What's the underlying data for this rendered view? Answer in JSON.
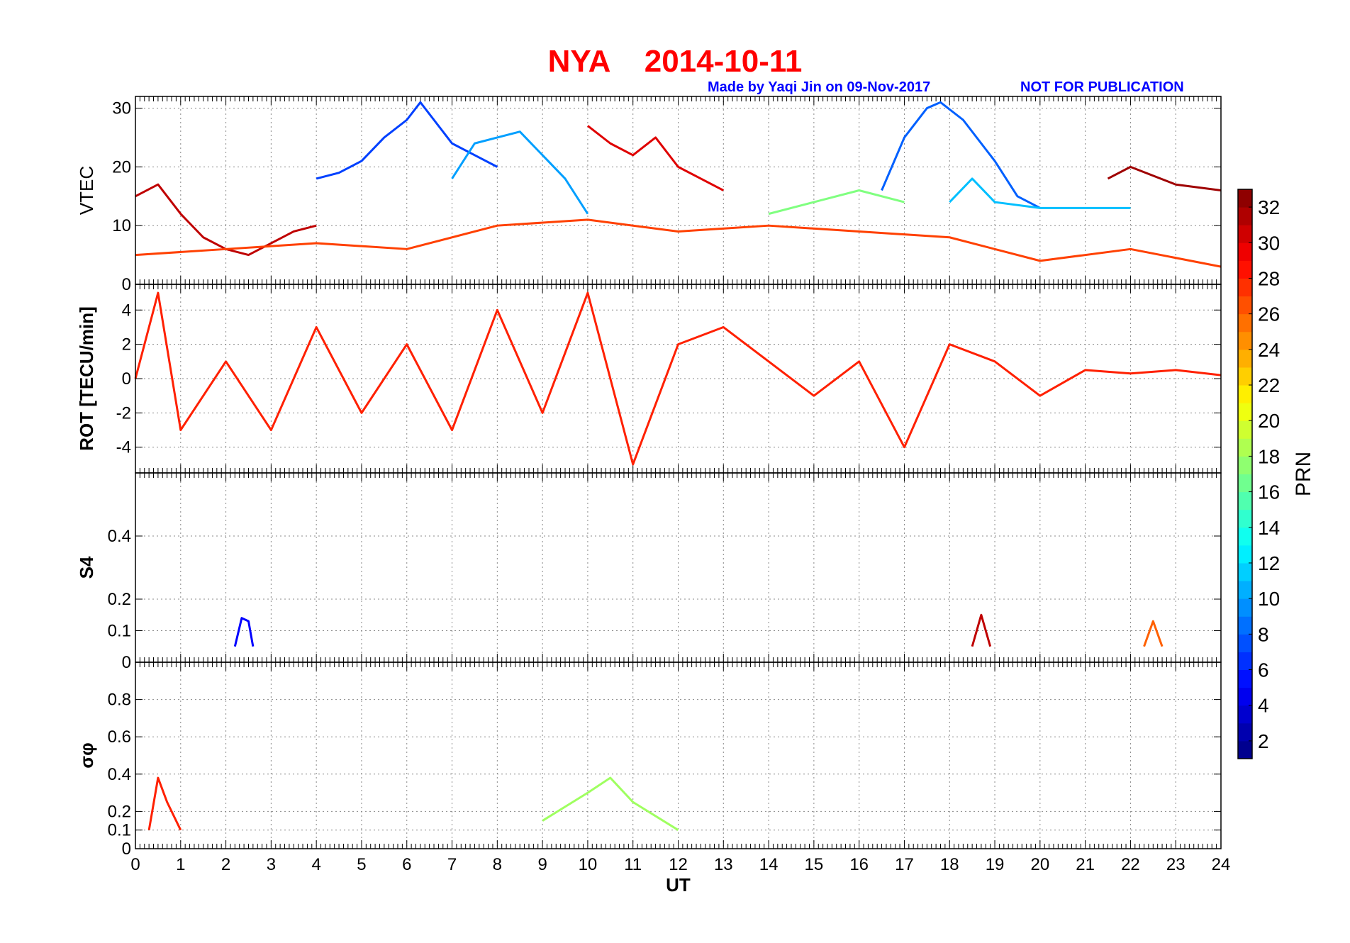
{
  "title": {
    "station": "NYA",
    "date": "2014-10-11"
  },
  "credit": {
    "made_by": "Made by Yaqi Jin on 09-Nov-2017",
    "notice": "NOT FOR PUBLICATION"
  },
  "colors": {
    "title": "#ff0000",
    "credit": "#0000ff",
    "axes": "#000000",
    "grid": "#888888"
  },
  "chart_data": [
    {
      "id": "vtec",
      "type": "line",
      "ylabel": "VTEC",
      "xlim": [
        0,
        24
      ],
      "ylim": [
        0,
        32
      ],
      "yticks": [
        0,
        10,
        20,
        30
      ],
      "series": [
        {
          "name": "PRN 31",
          "x": [
            0,
            0.5,
            1,
            1.5,
            2,
            2.5,
            3,
            3.5,
            4
          ],
          "y": [
            15,
            17,
            12,
            8,
            6,
            5,
            7,
            9,
            10
          ]
        },
        {
          "name": "PRN 7",
          "x": [
            4,
            4.5,
            5,
            5.5,
            6,
            6.3,
            6.6,
            7,
            7.5,
            8
          ],
          "y": [
            18,
            19,
            21,
            25,
            28,
            31,
            28,
            24,
            22,
            20
          ]
        },
        {
          "name": "PRN 10",
          "x": [
            7,
            7.5,
            8,
            8.5,
            9,
            9.5,
            10
          ],
          "y": [
            18,
            24,
            25,
            26,
            22,
            18,
            12
          ]
        },
        {
          "name": "PRN 30",
          "x": [
            10,
            10.5,
            11,
            11.5,
            12,
            12.5,
            13
          ],
          "y": [
            27,
            24,
            22,
            25,
            20,
            18,
            16
          ]
        },
        {
          "name": "PRN 8",
          "x": [
            16.5,
            17,
            17.5,
            17.8,
            18.3,
            19,
            19.5,
            20
          ],
          "y": [
            16,
            25,
            30,
            31,
            28,
            21,
            15,
            13
          ]
        },
        {
          "name": "PRN 11",
          "x": [
            18,
            18.5,
            19,
            20,
            21,
            22
          ],
          "y": [
            14,
            18,
            14,
            13,
            13,
            13
          ]
        },
        {
          "name": "PRN 17",
          "x": [
            14,
            15,
            16,
            17
          ],
          "y": [
            12,
            14,
            16,
            14
          ]
        },
        {
          "name": "PRN 32",
          "x": [
            21.5,
            22,
            23,
            24
          ],
          "y": [
            18,
            20,
            17,
            16
          ]
        },
        {
          "name": "PRN 27",
          "x": [
            0,
            2,
            4,
            6,
            8,
            10,
            12,
            14,
            16,
            18,
            20,
            22,
            24
          ],
          "y": [
            5,
            6,
            7,
            6,
            10,
            11,
            9,
            10,
            9,
            8,
            4,
            6,
            3
          ]
        }
      ]
    },
    {
      "id": "rot",
      "type": "line",
      "ylabel": "ROT [TECU/min]",
      "xlim": [
        0,
        24
      ],
      "ylim": [
        -5.5,
        5.5
      ],
      "yticks": [
        -4,
        -2,
        0,
        2,
        4
      ],
      "series": [
        {
          "name": "PRN 28",
          "x": [
            0,
            0.5,
            1,
            2,
            3,
            4,
            5,
            6,
            7,
            8,
            9,
            10,
            11,
            12,
            13,
            14,
            15,
            16,
            17,
            18,
            19,
            20,
            21,
            22,
            23,
            24
          ],
          "y": [
            0,
            5,
            -3,
            1,
            -3,
            3,
            -2,
            2,
            -3,
            4,
            -2,
            5,
            -5,
            2,
            3,
            1,
            -1,
            1,
            -4,
            2,
            1,
            -1,
            0.5,
            0.3,
            0.5,
            0.2
          ]
        }
      ]
    },
    {
      "id": "s4",
      "type": "line",
      "ylabel": "S4",
      "xlim": [
        0,
        24
      ],
      "ylim": [
        0,
        0.6
      ],
      "yticks": [
        0,
        0.1,
        0.2,
        0.4
      ],
      "series": [
        {
          "name": "PRN 5",
          "x": [
            2.2,
            2.35,
            2.5,
            2.6
          ],
          "y": [
            0.05,
            0.14,
            0.13,
            0.05
          ]
        },
        {
          "name": "PRN 31",
          "x": [
            18.5,
            18.7,
            18.9
          ],
          "y": [
            0.05,
            0.15,
            0.05
          ]
        },
        {
          "name": "PRN 26",
          "x": [
            22.3,
            22.5,
            22.7
          ],
          "y": [
            0.05,
            0.13,
            0.05
          ]
        }
      ]
    },
    {
      "id": "sigma_phi",
      "type": "line",
      "ylabel": "σφ",
      "xlim": [
        0,
        24
      ],
      "ylim": [
        0,
        1
      ],
      "yticks": [
        0,
        0.1,
        0.2,
        0.4,
        0.6,
        0.8
      ],
      "xticks": [
        0,
        1,
        2,
        3,
        4,
        5,
        6,
        7,
        8,
        9,
        10,
        11,
        12,
        13,
        14,
        15,
        16,
        17,
        18,
        19,
        20,
        21,
        22,
        23,
        24
      ],
      "xlabel": "UT",
      "series": [
        {
          "name": "PRN 28",
          "x": [
            0.3,
            0.5,
            0.7,
            1
          ],
          "y": [
            0.1,
            0.38,
            0.25,
            0.1
          ]
        },
        {
          "name": "PRN 18",
          "x": [
            9,
            10,
            10.5,
            11,
            12
          ],
          "y": [
            0.15,
            0.3,
            0.38,
            0.25,
            0.1
          ]
        }
      ]
    }
  ],
  "colorbar": {
    "label": "PRN",
    "ticks": [
      2,
      4,
      6,
      8,
      10,
      12,
      14,
      16,
      18,
      20,
      22,
      24,
      26,
      28,
      30,
      32
    ],
    "range": [
      1,
      33
    ]
  }
}
